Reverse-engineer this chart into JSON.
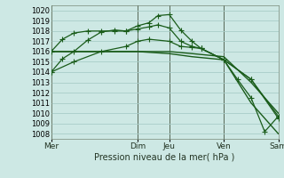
{
  "background_color": "#cde8e4",
  "grid_color": "#a8cdc8",
  "line_color": "#1a5c1a",
  "marker_color": "#1a5c1a",
  "ylabel_ticks": [
    1008,
    1009,
    1010,
    1011,
    1012,
    1013,
    1014,
    1015,
    1016,
    1017,
    1018,
    1019,
    1020
  ],
  "ylim": [
    1007.5,
    1020.5
  ],
  "xlabel": "Pression niveau de la mer( hPa )",
  "day_labels": [
    "Mer",
    "Dim",
    "Jeu",
    "Ven",
    "Sam"
  ],
  "day_positions": [
    0.0,
    0.38,
    0.52,
    0.76,
    1.0
  ],
  "vline_color": "#556655",
  "series": [
    {
      "x": [
        0.0,
        0.05,
        0.1,
        0.16,
        0.22,
        0.28,
        0.33,
        0.38,
        0.43,
        0.47,
        0.52,
        0.57,
        0.62,
        0.66,
        0.76,
        0.88,
        1.0
      ],
      "y": [
        1014.0,
        1015.3,
        1016.0,
        1017.1,
        1017.9,
        1018.1,
        1018.0,
        1018.5,
        1018.8,
        1019.5,
        1019.6,
        1018.1,
        1017.0,
        1016.3,
        1015.2,
        1013.3,
        1009.5
      ],
      "marker": "+",
      "ms": 4,
      "lw": 0.9,
      "zorder": 3
    },
    {
      "x": [
        0.0,
        0.05,
        0.1,
        0.16,
        0.22,
        0.28,
        0.33,
        0.38,
        0.43,
        0.47,
        0.52,
        0.57,
        0.62,
        0.66,
        0.76,
        0.88,
        1.0
      ],
      "y": [
        1016.0,
        1017.2,
        1017.8,
        1018.0,
        1018.0,
        1018.0,
        1018.0,
        1018.2,
        1018.4,
        1018.6,
        1018.3,
        1017.0,
        1016.5,
        1016.3,
        1015.2,
        1013.3,
        1009.7
      ],
      "marker": "+",
      "ms": 4,
      "lw": 0.9,
      "zorder": 3
    },
    {
      "x": [
        0.0,
        0.1,
        0.22,
        0.33,
        0.38,
        0.43,
        0.52,
        0.57,
        0.62,
        0.66,
        0.76,
        0.82,
        0.88,
        0.94,
        1.0
      ],
      "y": [
        1014.0,
        1015.0,
        1016.0,
        1016.5,
        1017.0,
        1017.2,
        1017.0,
        1016.5,
        1016.4,
        1016.3,
        1015.2,
        1013.3,
        1011.5,
        1008.2,
        1009.7
      ],
      "marker": "+",
      "ms": 4,
      "lw": 0.9,
      "zorder": 3
    },
    {
      "x": [
        0.0,
        0.1,
        0.22,
        0.38,
        0.52,
        0.62,
        0.76,
        0.88,
        1.0
      ],
      "y": [
        1016.0,
        1016.0,
        1016.0,
        1016.0,
        1016.0,
        1015.8,
        1015.5,
        1013.0,
        1010.0
      ],
      "marker": null,
      "ms": 0,
      "lw": 1.0,
      "zorder": 2
    },
    {
      "x": [
        0.0,
        0.1,
        0.22,
        0.38,
        0.52,
        0.62,
        0.76,
        0.88,
        1.0
      ],
      "y": [
        1016.0,
        1016.0,
        1016.0,
        1016.0,
        1015.8,
        1015.5,
        1015.2,
        1011.0,
        1008.0
      ],
      "marker": null,
      "ms": 0,
      "lw": 1.0,
      "zorder": 2
    }
  ]
}
